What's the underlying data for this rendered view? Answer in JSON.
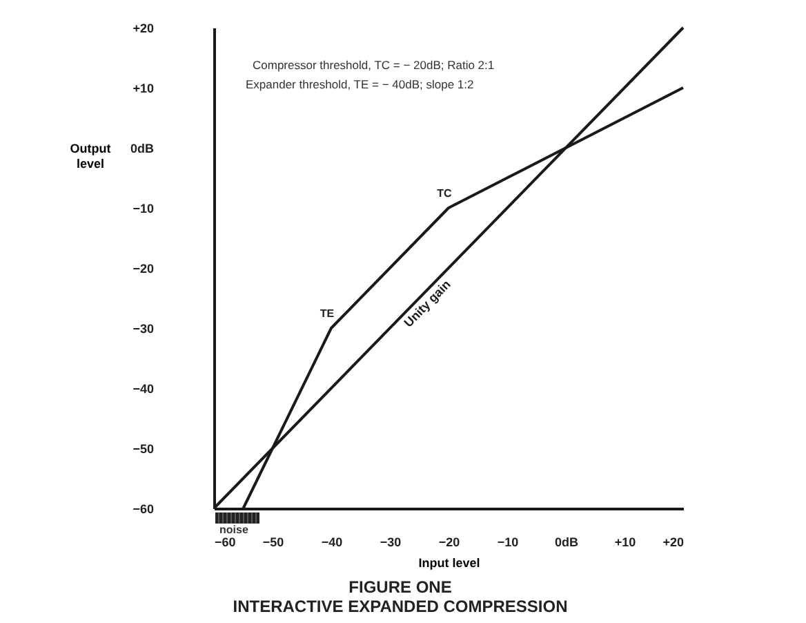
{
  "chart_data": {
    "type": "line",
    "title": "FIGURE ONE",
    "subtitle": "INTERACTIVE EXPANDED COMPRESSION",
    "xlabel": "Input level",
    "ylabel": "Output level",
    "annotations": [
      "Compressor threshold, TC = − 20dB; Ratio 2:1",
      "Expander threshold, TE = − 40dB; slope 1:2",
      "noise",
      {
        "text": "TE",
        "x": -40,
        "y": -30
      },
      {
        "text": "TC",
        "x": -20,
        "y": -10
      }
    ],
    "series": [
      {
        "name": "Unity gain",
        "color": "#1a1a1a",
        "x": [
          -60,
          20
        ],
        "values": [
          -60,
          20
        ]
      },
      {
        "color": "#1a1a1a",
        "x": [
          -55,
          -40,
          -20,
          20
        ],
        "values": [
          -60,
          -30,
          -10,
          10
        ]
      }
    ],
    "xlim": [
      -60,
      20
    ],
    "ylim": [
      -60,
      20
    ],
    "xticks": [
      -60,
      -50,
      -40,
      -30,
      -20,
      -10,
      {
        "value": 0,
        "label": "0dB"
      },
      {
        "value": 10,
        "label": "+10"
      },
      {
        "value": 20,
        "label": "+20"
      }
    ],
    "yticks": [
      -60,
      -50,
      -40,
      -30,
      -20,
      -10,
      {
        "value": 0,
        "label": "0dB"
      },
      {
        "value": 10,
        "label": "+10"
      },
      {
        "value": 20,
        "label": "+20"
      }
    ],
    "grid": false,
    "marker": "none",
    "line_style": "solid"
  }
}
